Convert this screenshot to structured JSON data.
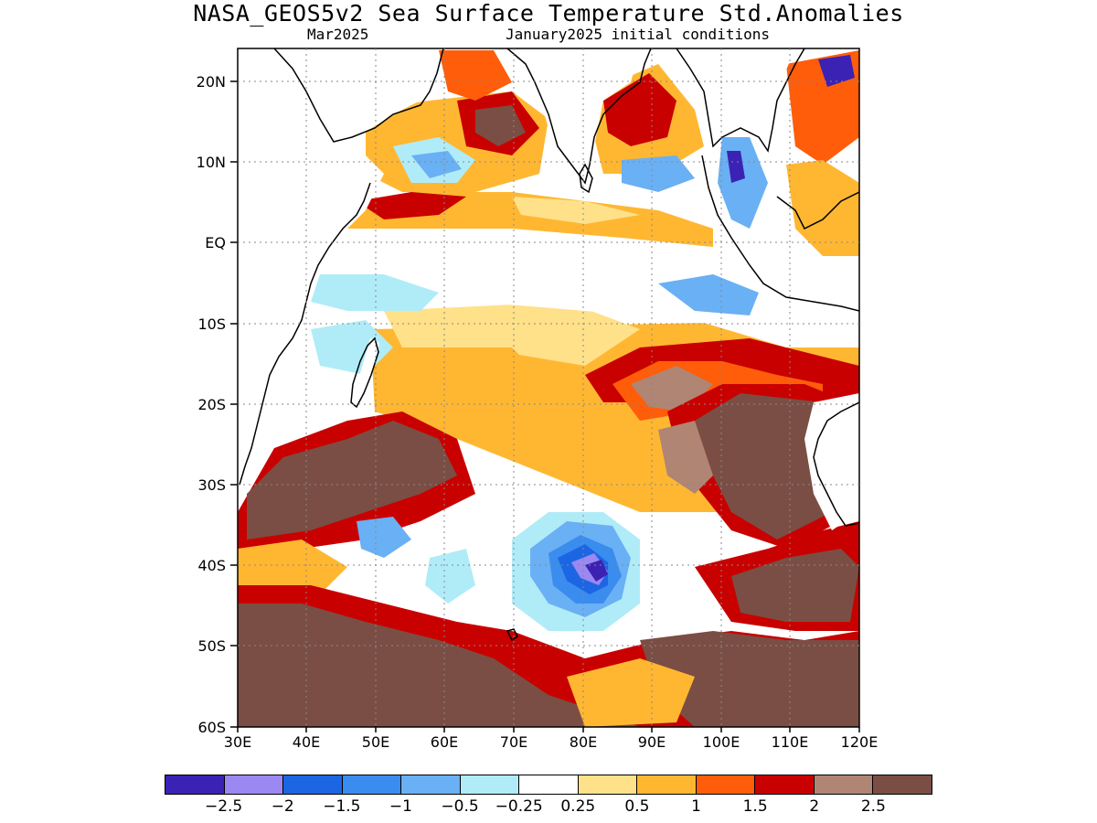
{
  "title": "NASA_GEOS5v2 Sea Surface Temperature Std.Anomalies",
  "subtitle_left": "Mar2025",
  "subtitle_right": "January2025 initial conditions",
  "map": {
    "lon_range": [
      30,
      120
    ],
    "lat_range": [
      -60,
      24
    ],
    "lat_ticks": [
      "20N",
      "10N",
      "EQ",
      "10S",
      "20S",
      "30S",
      "40S",
      "50S",
      "60S"
    ],
    "lon_ticks": [
      "30E",
      "40E",
      "50E",
      "60E",
      "70E",
      "80E",
      "90E",
      "100E",
      "110E",
      "120E"
    ],
    "grid": true
  },
  "colorbar": {
    "colors": [
      "#3b22b4",
      "#9b88f2",
      "#1c66e4",
      "#3a8cef",
      "#6ab0f4",
      "#b0ecf8",
      "#ffffff",
      "#ffe18a",
      "#ffb732",
      "#ff5d0a",
      "#c90000",
      "#b08574",
      "#7a4e44"
    ],
    "labels": [
      "−2.5",
      "−2",
      "−1.5",
      "−1",
      "−0.5",
      "−0.25",
      "0.25",
      "0.5",
      "1",
      "1.5",
      "2",
      "2.5"
    ]
  }
}
